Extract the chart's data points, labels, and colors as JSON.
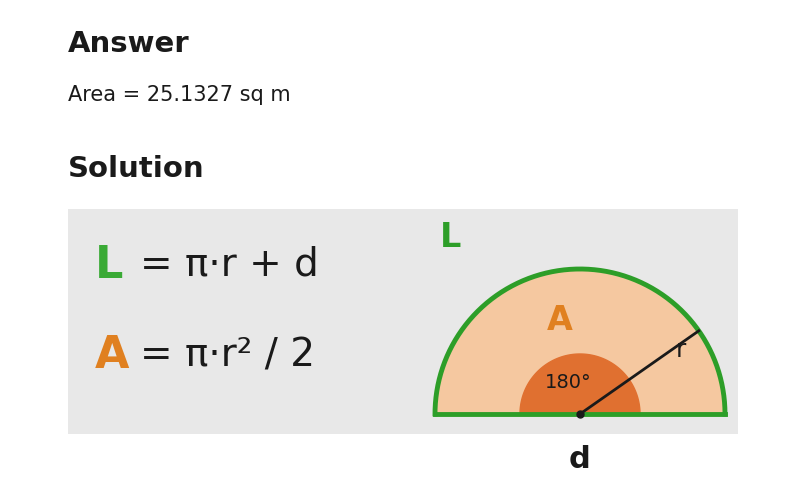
{
  "bg_color": "#ffffff",
  "panel_color": "#e8e8e8",
  "title_text": "Answer",
  "area_text": "Area = 25.1327 sq m",
  "solution_text": "Solution",
  "formula_L_color": "#3aaa35",
  "formula_A_color": "#e08020",
  "text_color": "#1a1a1a",
  "green_color": "#2d9e28",
  "orange_fill": "#e07030",
  "peach_fill": "#f5c8a0",
  "L_label": "L",
  "A_label": "A",
  "r_label": "r",
  "d_label": "d",
  "angle_label": "180°"
}
